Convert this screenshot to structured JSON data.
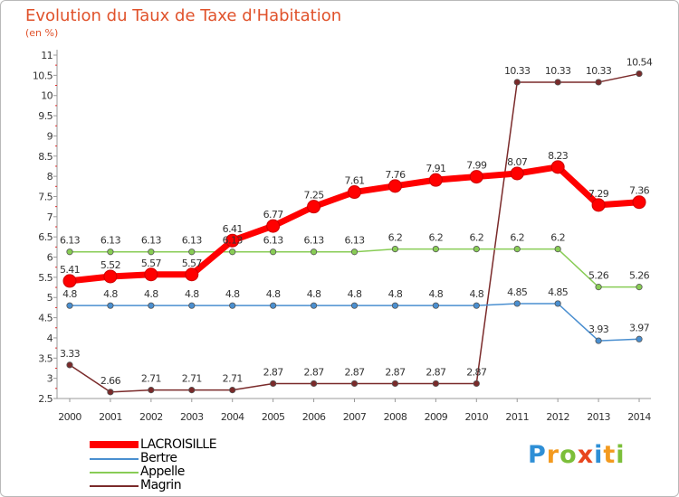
{
  "chart_data": {
    "type": "line",
    "title": "Evolution du Taux de Taxe d'Habitation",
    "subtitle": "(en %)",
    "xlabel": "",
    "ylabel": "",
    "x": [
      "2000",
      "2001",
      "2002",
      "2003",
      "2004",
      "2005",
      "2006",
      "2007",
      "2008",
      "2009",
      "2010",
      "2011",
      "2012",
      "2013",
      "2014"
    ],
    "ylim": [
      2.5,
      11
    ],
    "yticks": [
      "2.5",
      "3",
      "3.5",
      "4",
      "4.5",
      "5",
      "5.5",
      "6",
      "6.5",
      "7",
      "7.5",
      "8",
      "8.5",
      "9",
      "9.5",
      "10",
      "10.5",
      "11"
    ],
    "grid": false,
    "legend": "bottom-left",
    "series": [
      {
        "name": "LACROISILLE",
        "color": "#ff0000",
        "values": [
          5.41,
          5.52,
          5.57,
          5.57,
          6.41,
          6.77,
          7.25,
          7.61,
          7.76,
          7.91,
          7.99,
          8.07,
          8.23,
          7.29,
          7.36
        ],
        "labels": [
          "5.41",
          "5.52",
          "5.57",
          "5.57",
          "6.41",
          "6.77",
          "7.25",
          "7.61",
          "7.76",
          "7.91",
          "7.99",
          "8.07",
          "8.23",
          "7.29",
          "7.36"
        ]
      },
      {
        "name": "Bertre",
        "color": "#4a8fd0",
        "values": [
          4.8,
          4.8,
          4.8,
          4.8,
          4.8,
          4.8,
          4.8,
          4.8,
          4.8,
          4.8,
          4.8,
          4.85,
          4.85,
          3.93,
          3.97
        ],
        "labels": [
          "4.8",
          "4.8",
          "4.8",
          "4.8",
          "4.8",
          "4.8",
          "4.8",
          "4.8",
          "4.8",
          "4.8",
          "4.8",
          "4.85",
          "4.85",
          "3.93",
          "3.97"
        ]
      },
      {
        "name": "Appelle",
        "color": "#88cc55",
        "values": [
          6.13,
          6.13,
          6.13,
          6.13,
          6.13,
          6.13,
          6.13,
          6.13,
          6.2,
          6.2,
          6.2,
          6.2,
          6.2,
          5.26,
          5.26
        ],
        "labels": [
          "6.13",
          "6.13",
          "6.13",
          "6.13",
          "6.13",
          "6.13",
          "6.13",
          "6.13",
          "6.2",
          "6.2",
          "6.2",
          "6.2",
          "6.2",
          "5.26",
          "5.26"
        ]
      },
      {
        "name": "Magrin",
        "color": "#7a2a2a",
        "values": [
          3.33,
          2.66,
          2.71,
          2.71,
          2.71,
          2.87,
          2.87,
          2.87,
          2.87,
          2.87,
          2.87,
          10.33,
          10.33,
          10.33,
          10.54
        ],
        "labels": [
          "3.33",
          "2.66",
          "2.71",
          "2.71",
          "2.71",
          "2.87",
          "2.87",
          "2.87",
          "2.87",
          "2.87",
          "2.87",
          "10.33",
          "10.33",
          "10.33",
          "10.54"
        ]
      }
    ]
  },
  "logo": {
    "letters": [
      "P",
      "r",
      "o",
      "x",
      "i",
      "t",
      "i"
    ],
    "colors": [
      "#2e8fd6",
      "#f39a1f",
      "#7cbf3a",
      "#e8451e",
      "#2e8fd6",
      "#f39a1f",
      "#7cbf3a"
    ]
  }
}
